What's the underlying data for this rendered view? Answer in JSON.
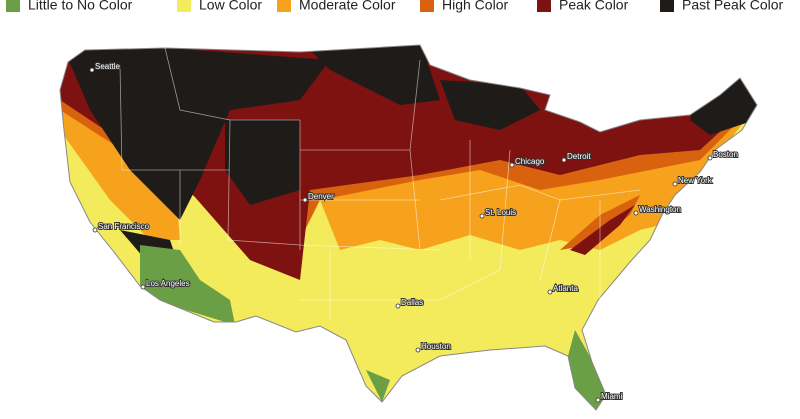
{
  "legend": [
    {
      "label": "Little to No Color",
      "color": "#6a9f45"
    },
    {
      "label": "Low Color",
      "color": "#f3ea5c"
    },
    {
      "label": "Moderate Color",
      "color": "#f6a21c"
    },
    {
      "label": "High Color",
      "color": "#d9620f"
    },
    {
      "label": "Peak Color",
      "color": "#7e1210"
    },
    {
      "label": "Past Peak Color",
      "color": "#1f1b18"
    }
  ],
  "cities": [
    "Seattle",
    "San Francisco",
    "Los Angeles",
    "Denver",
    "Dallas",
    "Houston",
    "St. Louis",
    "Chicago",
    "Detroit",
    "Atlanta",
    "Washington",
    "New York",
    "Boston",
    "Miami"
  ]
}
